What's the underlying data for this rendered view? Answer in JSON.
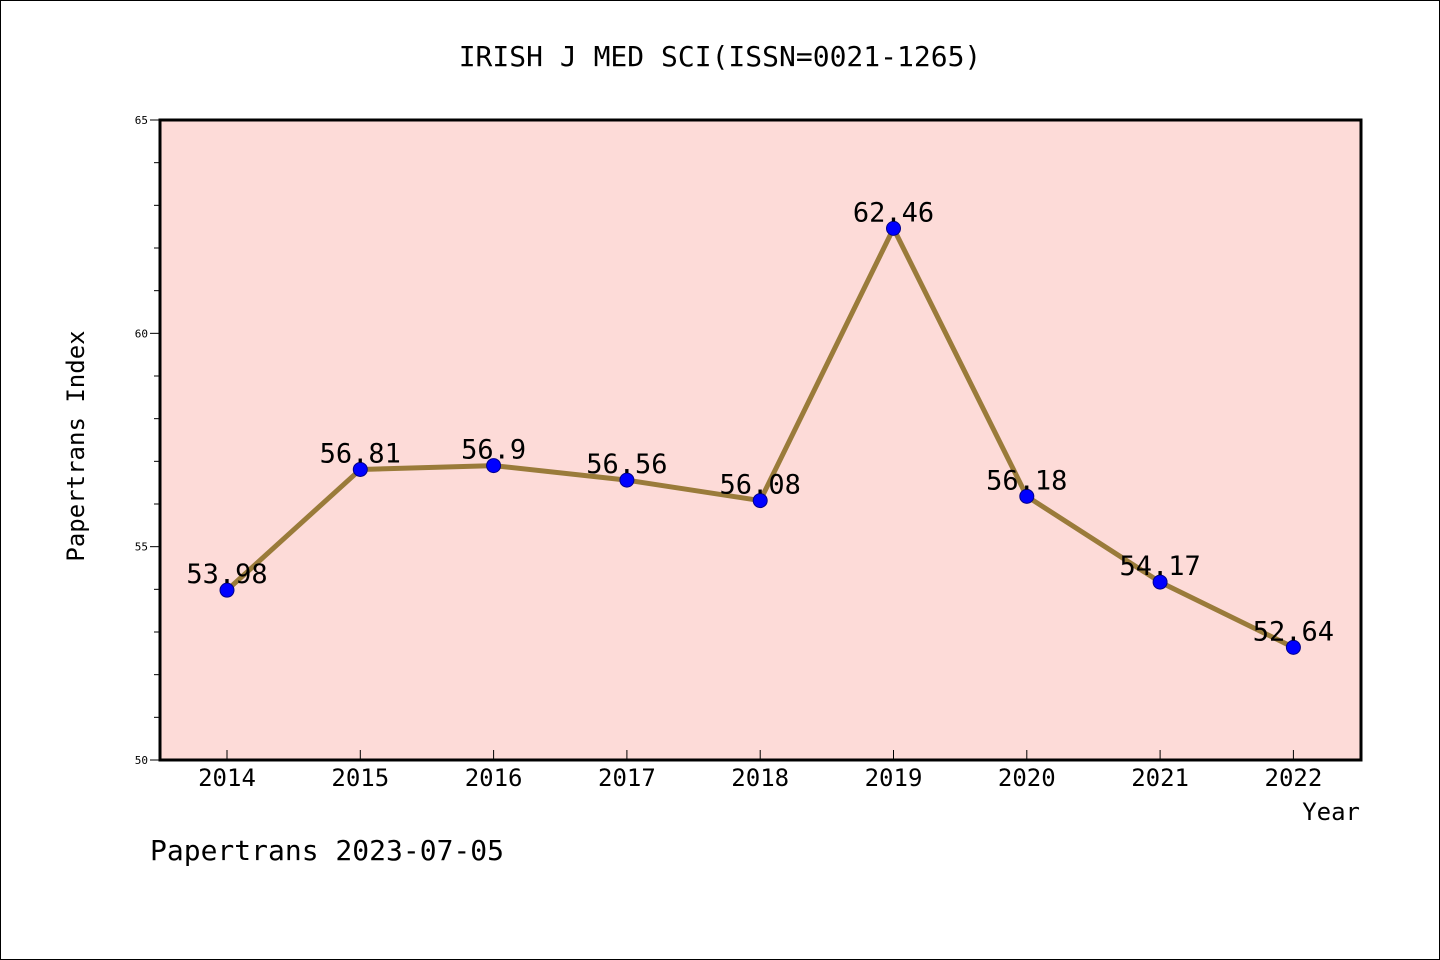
{
  "chart_data": {
    "type": "line",
    "title": "IRISH J MED SCI(ISSN=0021-1265)",
    "xlabel": "Year",
    "ylabel": "Papertrans Index",
    "categories": [
      "2014",
      "2015",
      "2016",
      "2017",
      "2018",
      "2019",
      "2020",
      "2021",
      "2022"
    ],
    "series": [
      {
        "values": [
          53.98,
          56.81,
          56.9,
          56.56,
          56.08,
          62.46,
          56.18,
          54.17,
          52.64
        ],
        "labels": [
          "53.98",
          "56.81",
          "56.9",
          "56.56",
          "56.08",
          "62.46",
          "56.18",
          "54.17",
          "52.64"
        ],
        "line_color": "#9a7b3a",
        "marker_color": "#0000ff"
      }
    ],
    "ylim": [
      50,
      65
    ],
    "yticks": [
      "50",
      "55",
      "60",
      "65"
    ],
    "plot_background": "#fddbd8",
    "grid": false,
    "legend": "none"
  },
  "footer": "Papertrans 2023-07-05"
}
